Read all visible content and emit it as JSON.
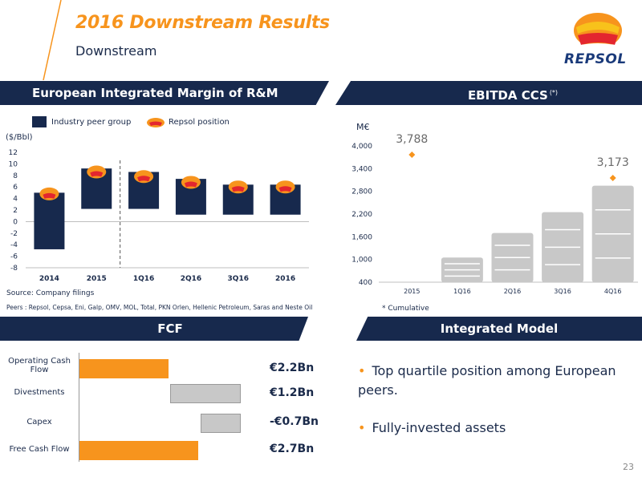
{
  "header": {
    "title": "2016 Downstream Results",
    "subtitle": "Downstream",
    "logo_text": "REPSOL"
  },
  "colors": {
    "orange": "#f7941d",
    "navy": "#17294d",
    "grey": "#c8c8c8"
  },
  "sections": {
    "margin_title": "European Integrated Margin of R&M",
    "ebitda_title": "EBITDA CCS",
    "ebitda_sup": "(*)",
    "fcf_title": "FCF",
    "integrated_title": "Integrated Model"
  },
  "margin": {
    "legend_peer": "Industry peer group",
    "legend_repsol": "Repsol position",
    "unit": "($/Bbl)",
    "source": "Source: Company filings",
    "peers_note": "Peers : Repsol, Cepsa, Eni, Galp, OMV, MOL, Total, PKN Orlen, Hellenic Petroleum, Saras and Neste Oil"
  },
  "ebitda": {
    "unit": "M€",
    "note": "* Cumulative"
  },
  "chart_data": [
    {
      "type": "bar",
      "title": "European Integrated Margin of R&M",
      "ylabel": "($/Bbl)",
      "categories": [
        "2014",
        "2015",
        "1Q16",
        "2Q16",
        "3Q16",
        "2016"
      ],
      "ylim": [
        -8,
        12
      ],
      "yticks": [
        12,
        10,
        8,
        6,
        4,
        2,
        0,
        -2,
        -4,
        -6,
        -8
      ],
      "series": [
        {
          "name": "Industry peer group",
          "low": [
            -4.8,
            2.2,
            2.2,
            1.2,
            1.2,
            1.2
          ],
          "high": [
            5.0,
            9.2,
            8.6,
            7.4,
            6.4,
            6.4
          ]
        },
        {
          "name": "Repsol position",
          "values": [
            4.8,
            8.6,
            7.8,
            6.8,
            6.0,
            6.0
          ]
        }
      ],
      "grid": false
    },
    {
      "type": "bar",
      "title": "EBITDA CCS",
      "ylabel": "M€",
      "categories": [
        "2015",
        "1Q16",
        "2Q16",
        "3Q16",
        "4Q16"
      ],
      "ylim": [
        400,
        4000
      ],
      "yticks": [
        "4,000",
        "3,400",
        "2,800",
        "2,200",
        "1,600",
        "1,000",
        "400"
      ],
      "series": [
        {
          "values": [
            null,
            1050,
            1700,
            2250,
            2950
          ]
        },
        {
          "values": [
            3788,
            null,
            null,
            null,
            3173
          ]
        }
      ],
      "labels": [
        "3,788",
        "3,173"
      ],
      "grid": false
    }
  ],
  "fcf": {
    "labels": [
      "Operating Cash Flow",
      "Divestments",
      "Capex",
      "Free Cash Flow"
    ],
    "values": [
      "€2.2Bn",
      "€1.2Bn",
      "-€0.7Bn",
      "€2.7Bn"
    ]
  },
  "integrated": {
    "bullets": [
      "Top quartile position among European peers.",
      "Fully-invested assets"
    ]
  },
  "page_number": "23"
}
